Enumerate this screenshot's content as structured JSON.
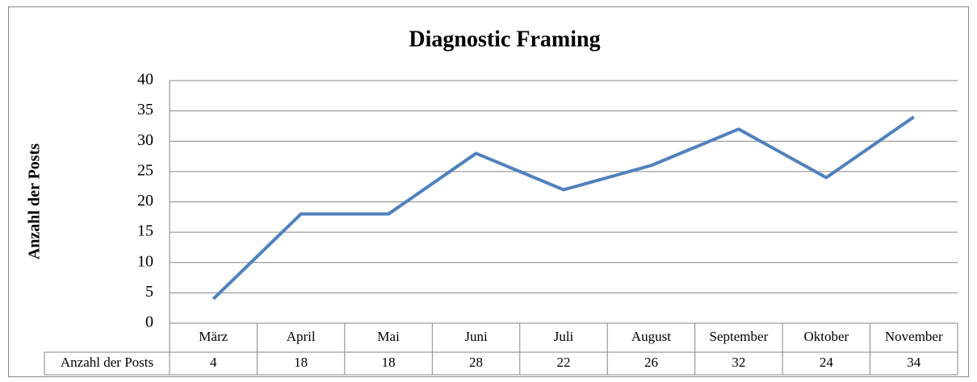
{
  "chart_data": {
    "type": "line",
    "title": "Diagnostic Framing",
    "y_label": "Anzahl der Posts",
    "categories": [
      "März",
      "April",
      "Mai",
      "Juni",
      "Juli",
      "August",
      "September",
      "Oktober",
      "November"
    ],
    "series": [
      {
        "name": "Anzahl der Posts",
        "color": "#4f81bd",
        "values": [
          4,
          18,
          18,
          28,
          22,
          26,
          32,
          24,
          34
        ]
      }
    ],
    "ylim": [
      0,
      40
    ],
    "yticks": [
      0,
      5,
      10,
      15,
      20,
      25,
      30,
      35,
      40
    ],
    "grid": true
  }
}
